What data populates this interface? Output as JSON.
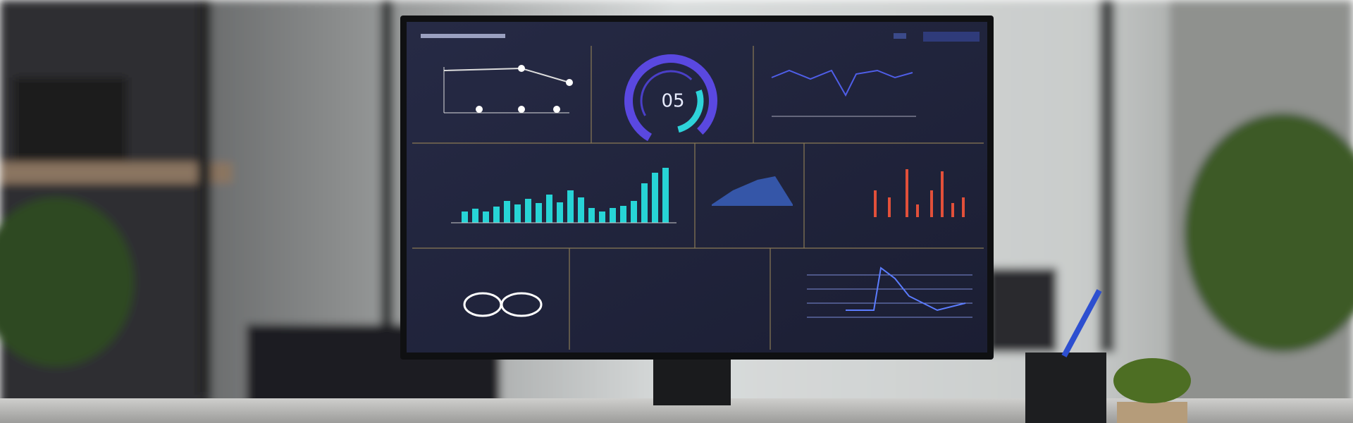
{
  "dashboard": {
    "gauge_label": "05"
  }
}
